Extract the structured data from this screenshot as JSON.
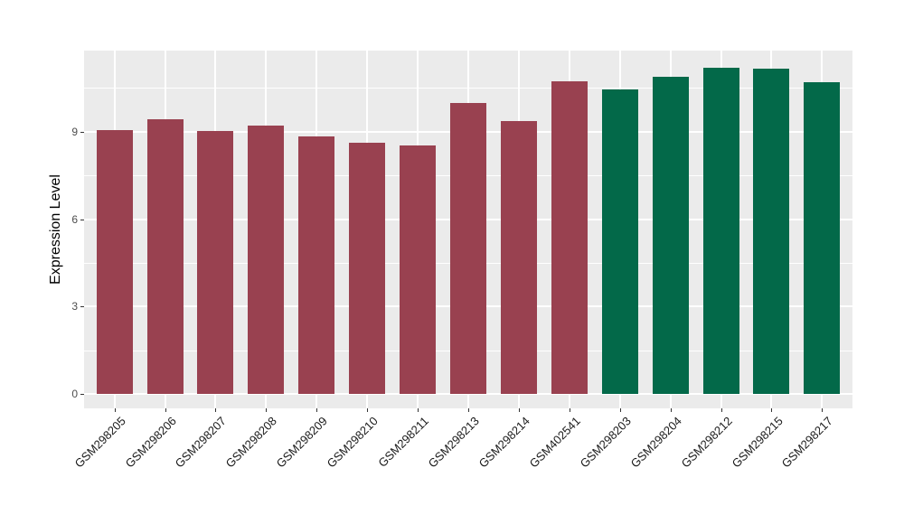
{
  "chart_data": {
    "type": "bar",
    "title": "",
    "xlabel": "",
    "ylabel": "Expression Level",
    "ylim": [
      0,
      11.8
    ],
    "yticks": [
      0,
      3,
      6,
      9
    ],
    "minor_yticks": [
      1.5,
      4.5,
      7.5,
      10.5
    ],
    "grid": true,
    "legend_position": "none",
    "panel_bg": "#EBEBEB",
    "grid_color": "#FFFFFF",
    "tick_color": "#333333",
    "ytick_text_color": "#4D4D4D",
    "xtick_text_color": "#1A1A1A",
    "background": "#FFFFFF",
    "bar_colors": {
      "maroon": "#994150",
      "green": "#036949"
    },
    "bars": [
      {
        "label": "GSM298205",
        "value": 9.05,
        "color": "#994150"
      },
      {
        "label": "GSM298206",
        "value": 9.43,
        "color": "#994150"
      },
      {
        "label": "GSM298207",
        "value": 9.03,
        "color": "#994150"
      },
      {
        "label": "GSM298208",
        "value": 9.21,
        "color": "#994150"
      },
      {
        "label": "GSM298209",
        "value": 8.84,
        "color": "#994150"
      },
      {
        "label": "GSM298210",
        "value": 8.61,
        "color": "#994150"
      },
      {
        "label": "GSM298211",
        "value": 8.53,
        "color": "#994150"
      },
      {
        "label": "GSM298213",
        "value": 9.97,
        "color": "#994150"
      },
      {
        "label": "GSM298214",
        "value": 9.37,
        "color": "#994150"
      },
      {
        "label": "GSM402541",
        "value": 10.72,
        "color": "#994150"
      },
      {
        "label": "GSM298203",
        "value": 10.45,
        "color": "#036949"
      },
      {
        "label": "GSM298204",
        "value": 10.87,
        "color": "#036949"
      },
      {
        "label": "GSM298212",
        "value": 11.18,
        "color": "#036949"
      },
      {
        "label": "GSM298215",
        "value": 11.15,
        "color": "#036949"
      },
      {
        "label": "GSM298217",
        "value": 10.71,
        "color": "#036949"
      }
    ]
  }
}
